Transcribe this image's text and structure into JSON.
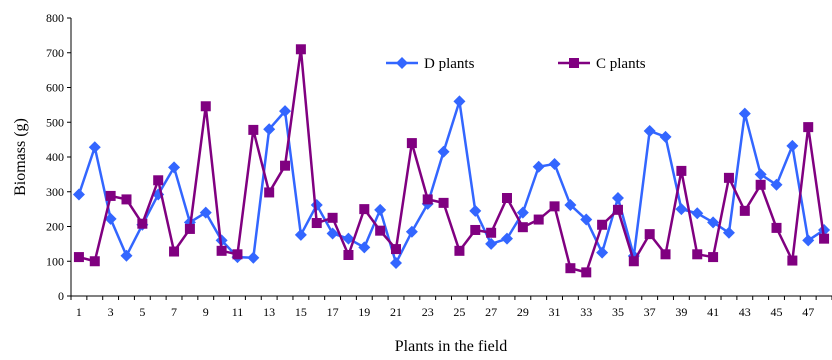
{
  "chart_data": {
    "type": "line",
    "xlabel": "Plants in the field",
    "ylabel": "Biomass (g)",
    "ylim": [
      0,
      800
    ],
    "yticks": [
      0,
      100,
      200,
      300,
      400,
      500,
      600,
      700,
      800
    ],
    "x": [
      1,
      2,
      3,
      4,
      5,
      6,
      7,
      8,
      9,
      10,
      11,
      12,
      13,
      14,
      15,
      16,
      17,
      18,
      19,
      20,
      21,
      22,
      23,
      24,
      25,
      26,
      27,
      28,
      29,
      30,
      31,
      32,
      33,
      34,
      35,
      36,
      37,
      38,
      39,
      40,
      41,
      42,
      43,
      44,
      45,
      46,
      47,
      48
    ],
    "xtick_labels": [
      "1",
      "3",
      "5",
      "7",
      "9",
      "11",
      "13",
      "15",
      "17",
      "19",
      "21",
      "23",
      "25",
      "27",
      "29",
      "31",
      "33",
      "35",
      "37",
      "39",
      "41",
      "43",
      "45",
      "47"
    ],
    "grid": false,
    "legend_position": "top-center",
    "series": [
      {
        "name": "D plants",
        "color": "#3366ff",
        "marker": "diamond",
        "values": [
          292,
          428,
          222,
          116,
          205,
          292,
          370,
          212,
          240,
          160,
          112,
          110,
          480,
          532,
          176,
          262,
          180,
          165,
          140,
          248,
          95,
          185,
          265,
          415,
          560,
          245,
          150,
          165,
          240,
          372,
          380,
          262,
          220,
          125,
          282,
          115,
          475,
          458,
          250,
          238,
          212,
          182,
          525,
          350,
          320,
          432,
          160,
          190
        ]
      },
      {
        "name": "C plants",
        "color": "#800080",
        "marker": "square",
        "values": [
          112,
          100,
          288,
          278,
          208,
          333,
          128,
          193,
          546,
          130,
          120,
          478,
          298,
          375,
          710,
          210,
          225,
          118,
          250,
          188,
          135,
          440,
          278,
          268,
          130,
          190,
          182,
          282,
          198,
          220,
          258,
          80,
          68,
          205,
          248,
          100,
          178,
          120,
          360,
          120,
          112,
          340,
          245,
          320,
          196,
          102,
          486,
          165
        ]
      }
    ]
  }
}
